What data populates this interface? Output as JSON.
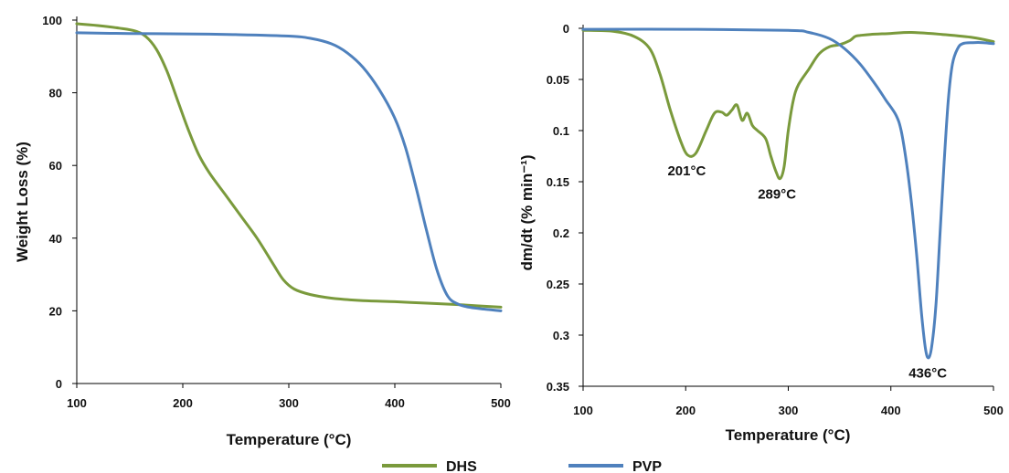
{
  "colors": {
    "DHS": "#7a9a3c",
    "PVP": "#4f81bd"
  },
  "legend": [
    {
      "name": "DHS",
      "color": "#7a9a3c"
    },
    {
      "name": "PVP",
      "color": "#4f81bd"
    }
  ],
  "chart_data": [
    {
      "type": "line",
      "title": "",
      "xlabel": "Temperature (°C)",
      "ylabel": "Weight Loss (%)",
      "xlim": [
        100,
        500
      ],
      "ylim": [
        0,
        100
      ],
      "xticks": [
        "100",
        "200",
        "300",
        "400",
        "500"
      ],
      "yticks": [
        "0",
        "20",
        "40",
        "60",
        "80",
        "100"
      ],
      "grid": false,
      "series": [
        {
          "name": "DHS",
          "x": [
            100,
            120,
            140,
            155,
            165,
            175,
            185,
            195,
            205,
            215,
            225,
            240,
            255,
            270,
            285,
            295,
            305,
            320,
            340,
            370,
            400,
            430,
            460,
            500
          ],
          "y": [
            99,
            98.5,
            97.8,
            97,
            95.5,
            92,
            86,
            78,
            70,
            63,
            58,
            52,
            46,
            40,
            33,
            28.5,
            26,
            24.5,
            23.5,
            22.8,
            22.5,
            22.1,
            21.7,
            21
          ]
        },
        {
          "name": "PVP",
          "x": [
            100,
            150,
            200,
            250,
            300,
            320,
            340,
            355,
            370,
            385,
            400,
            410,
            420,
            430,
            440,
            450,
            460,
            470,
            480,
            500
          ],
          "y": [
            96.5,
            96.3,
            96.2,
            96,
            95.6,
            95,
            93.5,
            91,
            87,
            81,
            73,
            65,
            54,
            42,
            31,
            24,
            21.8,
            21,
            20.6,
            20
          ]
        }
      ]
    },
    {
      "type": "line",
      "title": "",
      "xlabel": "Temperature (°C)",
      "ylabel": "dm/dt (% min⁻¹)",
      "xlim": [
        100,
        500
      ],
      "ylim": [
        0,
        0.35
      ],
      "y_inverted": true,
      "xticks": [
        "100",
        "200",
        "300",
        "400",
        "500"
      ],
      "yticks": [
        "0",
        "0.05",
        "0.1",
        "0.15",
        "0.2",
        "0.25",
        "0.3",
        "0.35"
      ],
      "grid": false,
      "annotations": [
        {
          "text": "201°C",
          "x": 201,
          "y": 0.124
        },
        {
          "text": "289°C",
          "x": 289,
          "y": 0.147
        },
        {
          "text": "436°C",
          "x": 436,
          "y": 0.322
        }
      ],
      "series": [
        {
          "name": "DHS",
          "x": [
            100,
            130,
            150,
            165,
            175,
            185,
            195,
            202,
            210,
            220,
            228,
            235,
            240,
            245,
            250,
            255,
            260,
            265,
            270,
            278,
            283,
            288,
            292,
            296,
            300,
            305,
            310,
            320,
            330,
            340,
            350,
            360,
            365,
            370,
            380,
            400,
            420,
            450,
            480,
            500
          ],
          "y": [
            0.002,
            0.003,
            0.008,
            0.02,
            0.045,
            0.08,
            0.11,
            0.124,
            0.122,
            0.1,
            0.083,
            0.082,
            0.085,
            0.08,
            0.075,
            0.09,
            0.083,
            0.095,
            0.1,
            0.108,
            0.125,
            0.14,
            0.147,
            0.135,
            0.1,
            0.07,
            0.055,
            0.04,
            0.025,
            0.018,
            0.016,
            0.012,
            0.008,
            0.007,
            0.006,
            0.005,
            0.004,
            0.006,
            0.009,
            0.013
          ]
        },
        {
          "name": "PVP",
          "x": [
            100,
            200,
            300,
            320,
            340,
            355,
            370,
            385,
            395,
            405,
            410,
            415,
            420,
            425,
            430,
            434,
            437,
            440,
            444,
            448,
            452,
            456,
            460,
            465,
            470,
            480,
            490,
            500
          ],
          "y": [
            0.001,
            0.001,
            0.002,
            0.004,
            0.01,
            0.02,
            0.035,
            0.055,
            0.07,
            0.085,
            0.1,
            0.13,
            0.17,
            0.22,
            0.28,
            0.315,
            0.322,
            0.31,
            0.27,
            0.2,
            0.13,
            0.07,
            0.035,
            0.02,
            0.015,
            0.014,
            0.014,
            0.015
          ]
        }
      ]
    }
  ]
}
